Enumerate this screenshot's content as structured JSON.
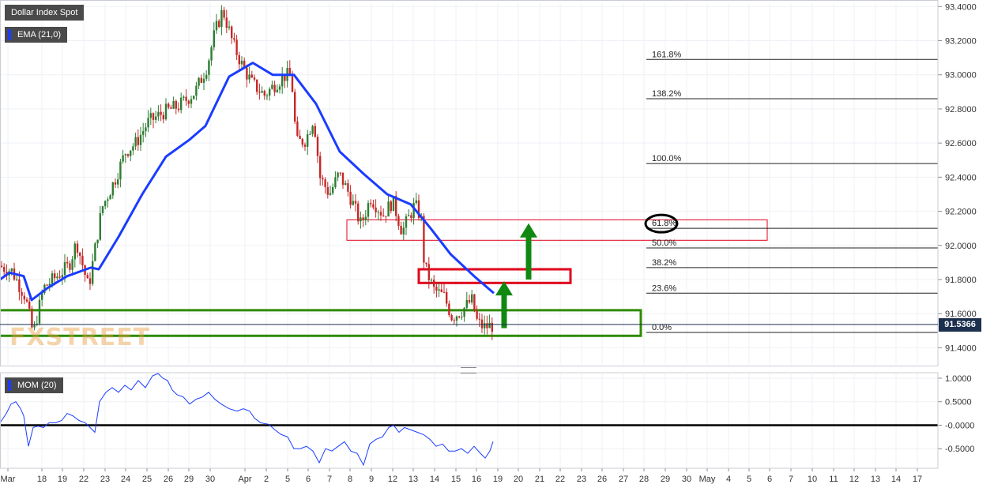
{
  "title": "Dollar Index Spot",
  "indicator_label": "EMA (21,0)",
  "momentum_label": "MOM (20)",
  "watermark": "FXSTREET",
  "current_price": "91.5366",
  "colors": {
    "up": "#2e7d32",
    "down": "#c62828",
    "ema": "#1a3cff",
    "momentum": "#1a3cff",
    "green_box": "#2e8b00",
    "red_box": "#e0001b",
    "arrow": "#118811",
    "price_tag": "#1c2f4e"
  },
  "chart_data": [
    {
      "type": "candlestick",
      "title": "Dollar Index Spot",
      "ylim": [
        91.3,
        93.42
      ],
      "y_ticks": [
        "93.4000",
        "93.2000",
        "93.0000",
        "92.8000",
        "92.6000",
        "92.4000",
        "92.2000",
        "92.0000",
        "91.8000",
        "91.6000",
        "91.4000"
      ],
      "y_tick_values": [
        93.4,
        93.2,
        93.0,
        92.8,
        92.6,
        92.4,
        92.2,
        92.0,
        91.8,
        91.6,
        91.4
      ],
      "x_ticks": [
        "Mar",
        "18",
        "19",
        "22",
        "23",
        "24",
        "25",
        "26",
        "29",
        "30",
        "Apr",
        "2",
        "5",
        "6",
        "7",
        "8",
        "9",
        "12",
        "13",
        "14",
        "15",
        "16",
        "19",
        "20",
        "21",
        "22",
        "23",
        "26",
        "27",
        "28",
        "29",
        "30",
        "May",
        "4",
        "5",
        "6",
        "7",
        "10",
        "11",
        "12",
        "13",
        "14",
        "17"
      ],
      "fibonacci_levels": [
        {
          "label": "161.8%",
          "value": 93.09
        },
        {
          "label": "138.2%",
          "value": 92.86
        },
        {
          "label": "100.0%",
          "value": 92.48
        },
        {
          "label": "61.8%",
          "value": 92.1
        },
        {
          "label": "50.0%",
          "value": 91.985
        },
        {
          "label": "38.2%",
          "value": 91.87
        },
        {
          "label": "23.6%",
          "value": 91.72
        },
        {
          "label": "0.0%",
          "value": 91.49
        }
      ],
      "zones": [
        {
          "name": "support-zone",
          "color": "green",
          "y_top": 91.62,
          "y_bottom": 91.47
        },
        {
          "name": "resistance-zone",
          "color": "red",
          "y_top": 91.86,
          "y_bottom": 91.78
        },
        {
          "name": "fib-618-zone",
          "color": "red",
          "y_top": 92.15,
          "y_bottom": 92.03
        }
      ],
      "ema_anchors": [
        [
          0,
          91.8
        ],
        [
          12,
          91.84
        ],
        [
          30,
          91.82
        ],
        [
          40,
          91.68
        ],
        [
          60,
          91.75
        ],
        [
          85,
          91.82
        ],
        [
          115,
          91.87
        ],
        [
          125,
          91.86
        ],
        [
          150,
          92.05
        ],
        [
          180,
          92.3
        ],
        [
          210,
          92.52
        ],
        [
          240,
          92.62
        ],
        [
          260,
          92.7
        ],
        [
          290,
          92.99
        ],
        [
          320,
          93.07
        ],
        [
          345,
          93.0
        ],
        [
          372,
          93.0
        ],
        [
          400,
          92.83
        ],
        [
          430,
          92.55
        ],
        [
          460,
          92.42
        ],
        [
          490,
          92.3
        ],
        [
          520,
          92.24
        ],
        [
          545,
          92.1
        ],
        [
          570,
          91.95
        ],
        [
          600,
          91.82
        ],
        [
          625,
          91.72
        ]
      ],
      "candle_waypoints": [
        [
          2,
          91.88
        ],
        [
          18,
          91.85
        ],
        [
          35,
          91.7
        ],
        [
          45,
          91.48
        ],
        [
          58,
          91.75
        ],
        [
          75,
          91.82
        ],
        [
          90,
          91.88
        ],
        [
          100,
          92.02
        ],
        [
          115,
          91.75
        ],
        [
          132,
          92.22
        ],
        [
          148,
          92.38
        ],
        [
          162,
          92.55
        ],
        [
          175,
          92.6
        ],
        [
          190,
          92.72
        ],
        [
          210,
          92.78
        ],
        [
          230,
          92.82
        ],
        [
          250,
          92.9
        ],
        [
          265,
          93.05
        ],
        [
          275,
          93.25
        ],
        [
          285,
          93.38
        ],
        [
          298,
          93.18
        ],
        [
          310,
          93.05
        ],
        [
          322,
          92.95
        ],
        [
          338,
          92.88
        ],
        [
          352,
          92.95
        ],
        [
          365,
          93.0
        ],
        [
          372,
          92.98
        ],
        [
          378,
          92.6
        ],
        [
          390,
          92.62
        ],
        [
          400,
          92.75
        ],
        [
          408,
          92.4
        ],
        [
          420,
          92.3
        ],
        [
          432,
          92.42
        ],
        [
          445,
          92.3
        ],
        [
          460,
          92.12
        ],
        [
          472,
          92.28
        ],
        [
          488,
          92.18
        ],
        [
          500,
          92.26
        ],
        [
          512,
          92.08
        ],
        [
          528,
          92.24
        ],
        [
          536,
          92.16
        ],
        [
          540,
          91.88
        ],
        [
          552,
          91.74
        ],
        [
          565,
          91.7
        ],
        [
          575,
          91.58
        ],
        [
          588,
          91.62
        ],
        [
          600,
          91.68
        ],
        [
          607,
          91.55
        ],
        [
          615,
          91.52
        ],
        [
          625,
          91.53
        ]
      ]
    },
    {
      "type": "line",
      "title": "MOM (20)",
      "ylim": [
        -0.9,
        1.1
      ],
      "y_ticks": [
        "1.0000",
        "0.5000",
        "-0.0000",
        "-0.5000"
      ],
      "y_tick_values": [
        1.0,
        0.5,
        0.0,
        -0.5
      ],
      "zero_line": 0.0,
      "series_points": [
        [
          0,
          0.05
        ],
        [
          8,
          0.25
        ],
        [
          14,
          0.45
        ],
        [
          20,
          0.5
        ],
        [
          26,
          0.35
        ],
        [
          30,
          0.2
        ],
        [
          36,
          -0.45
        ],
        [
          42,
          -0.05
        ],
        [
          48,
          -0.02
        ],
        [
          55,
          -0.05
        ],
        [
          62,
          0.05
        ],
        [
          70,
          0.05
        ],
        [
          78,
          0.1
        ],
        [
          85,
          0.25
        ],
        [
          92,
          0.2
        ],
        [
          100,
          0.1
        ],
        [
          108,
          0.05
        ],
        [
          114,
          -0.05
        ],
        [
          120,
          -0.15
        ],
        [
          126,
          0.5
        ],
        [
          134,
          0.7
        ],
        [
          142,
          0.8
        ],
        [
          150,
          0.7
        ],
        [
          158,
          0.85
        ],
        [
          166,
          0.75
        ],
        [
          175,
          0.95
        ],
        [
          184,
          0.8
        ],
        [
          193,
          1.05
        ],
        [
          200,
          1.1
        ],
        [
          206,
          1.0
        ],
        [
          212,
          0.95
        ],
        [
          218,
          0.75
        ],
        [
          224,
          0.65
        ],
        [
          232,
          0.6
        ],
        [
          240,
          0.45
        ],
        [
          248,
          0.55
        ],
        [
          256,
          0.6
        ],
        [
          264,
          0.7
        ],
        [
          272,
          0.55
        ],
        [
          280,
          0.45
        ],
        [
          290,
          0.35
        ],
        [
          300,
          0.3
        ],
        [
          308,
          0.35
        ],
        [
          316,
          0.3
        ],
        [
          322,
          0.15
        ],
        [
          330,
          0.05
        ],
        [
          340,
          0.02
        ],
        [
          348,
          -0.1
        ],
        [
          356,
          -0.2
        ],
        [
          364,
          -0.25
        ],
        [
          372,
          -0.5
        ],
        [
          380,
          -0.5
        ],
        [
          388,
          -0.45
        ],
        [
          396,
          -0.55
        ],
        [
          404,
          -0.8
        ],
        [
          412,
          -0.5
        ],
        [
          420,
          -0.55
        ],
        [
          428,
          -0.45
        ],
        [
          436,
          -0.35
        ],
        [
          444,
          -0.55
        ],
        [
          452,
          -0.6
        ],
        [
          460,
          -0.85
        ],
        [
          468,
          -0.4
        ],
        [
          476,
          -0.3
        ],
        [
          484,
          -0.25
        ],
        [
          492,
          -0.05
        ],
        [
          498,
          0.0
        ],
        [
          505,
          -0.15
        ],
        [
          512,
          -0.05
        ],
        [
          520,
          -0.1
        ],
        [
          528,
          -0.15
        ],
        [
          536,
          -0.2
        ],
        [
          544,
          -0.3
        ],
        [
          552,
          -0.45
        ],
        [
          560,
          -0.4
        ],
        [
          568,
          -0.55
        ],
        [
          576,
          -0.55
        ],
        [
          584,
          -0.5
        ],
        [
          592,
          -0.6
        ],
        [
          600,
          -0.45
        ],
        [
          608,
          -0.6
        ],
        [
          614,
          -0.7
        ],
        [
          620,
          -0.55
        ],
        [
          624,
          -0.35
        ]
      ]
    }
  ]
}
